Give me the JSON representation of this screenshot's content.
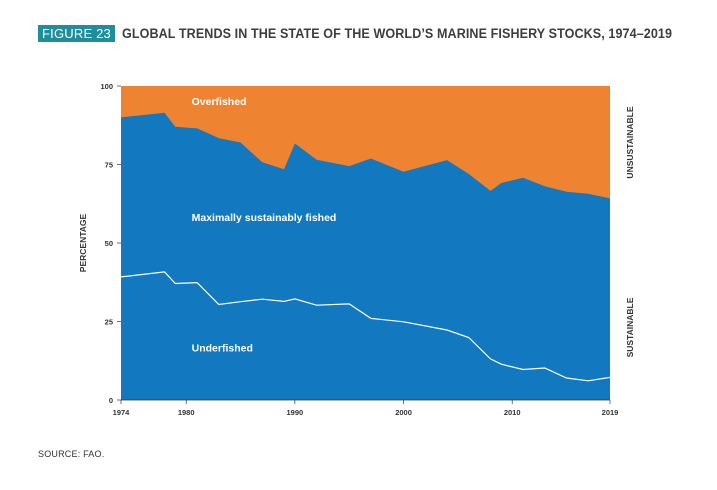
{
  "header": {
    "figure_label": "FIGURE 23",
    "title": "GLOBAL TRENDS IN THE STATE OF THE WORLD’S MARINE FISHERY STOCKS, 1974–2019"
  },
  "source": "SOURCE: FAO.",
  "colors": {
    "overfished": "#ee8431",
    "sustainable_fill": "#1278bf",
    "badge": "#1f8d9b",
    "divider_line": "#ffffff"
  },
  "chart_data": {
    "type": "area",
    "ylabel": "PERCENTAGE",
    "ylim": [
      0,
      100
    ],
    "xlim": [
      1974,
      2019
    ],
    "y_ticks": [
      0,
      25,
      50,
      75,
      100
    ],
    "x_ticks": [
      1974,
      1980,
      1990,
      2000,
      2010,
      2019
    ],
    "x": [
      1974,
      1978,
      1979,
      1981,
      1983,
      1985,
      1987,
      1989,
      1990,
      1992,
      1995,
      1997,
      2000,
      2004,
      2006,
      2008,
      2009,
      2011,
      2013,
      2015,
      2017,
      2019
    ],
    "series": [
      {
        "name": "Underfished",
        "values": [
          39.2,
          40.8,
          37.1,
          37.4,
          30.4,
          31.3,
          32.1,
          31.4,
          32.2,
          30.2,
          30.6,
          26.0,
          24.9,
          22.3,
          19.9,
          13.1,
          11.4,
          9.7,
          10.2,
          7.0,
          6.1,
          7.2
        ]
      },
      {
        "name": "Maximally sustainably fished",
        "values": [
          50.8,
          50.7,
          49.9,
          49.1,
          53.0,
          50.7,
          43.6,
          42.1,
          49.5,
          46.3,
          43.9,
          50.9,
          47.8,
          54.1,
          52.1,
          53.5,
          57.7,
          61.1,
          57.9,
          59.3,
          59.6,
          57.0
        ]
      },
      {
        "name": "Overfished",
        "values": [
          10.0,
          8.5,
          13.0,
          13.5,
          16.6,
          18.0,
          24.3,
          26.5,
          18.3,
          23.5,
          25.5,
          23.1,
          27.3,
          23.6,
          28.0,
          33.4,
          30.9,
          29.2,
          31.9,
          33.7,
          34.3,
          35.8
        ]
      }
    ],
    "area_labels": [
      "Overfished",
      "Maximally sustainably fished",
      "Underfished"
    ],
    "right_labels": [
      "UNSUSTAINABLE",
      "SUSTAINABLE"
    ],
    "grid": false
  }
}
